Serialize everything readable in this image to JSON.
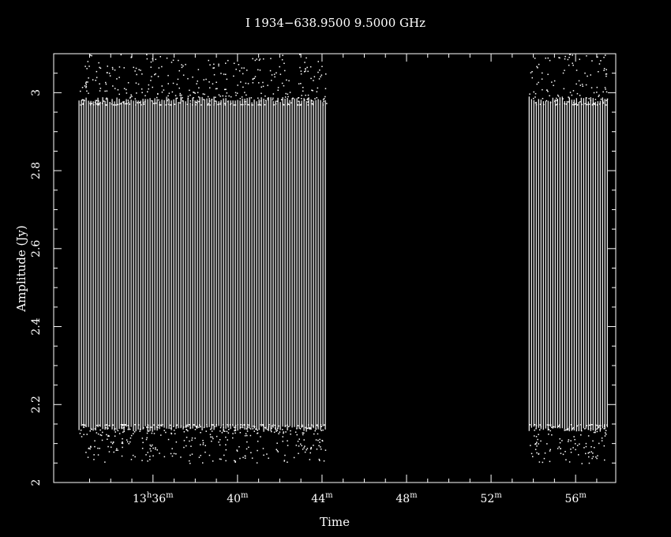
{
  "chart_data": {
    "type": "scatter",
    "title": "I 1934−638.9500  9.5000  GHz",
    "xlabel": "Time",
    "ylabel": "Amplitude (Jy)",
    "x_unit": "minutes after 13h00m",
    "xlim": [
      31.3,
      57.9
    ],
    "ylim": [
      2.0,
      3.1
    ],
    "x_ticks": [
      {
        "value": 36,
        "label_main": "13",
        "label_sup1": "h",
        "label_mid": "36",
        "label_sup2": "m"
      },
      {
        "value": 40,
        "label_main": "",
        "label_sup1": "",
        "label_mid": "40",
        "label_sup2": "m"
      },
      {
        "value": 44,
        "label_main": "",
        "label_sup1": "",
        "label_mid": "44",
        "label_sup2": "m"
      },
      {
        "value": 48,
        "label_main": "",
        "label_sup1": "",
        "label_mid": "48",
        "label_sup2": "m"
      },
      {
        "value": 52,
        "label_main": "",
        "label_sup1": "",
        "label_mid": "52",
        "label_sup2": "m"
      },
      {
        "value": 56,
        "label_main": "",
        "label_sup1": "",
        "label_mid": "56",
        "label_sup2": "m"
      }
    ],
    "y_ticks": [
      {
        "value": 2.0,
        "label": "2"
      },
      {
        "value": 2.2,
        "label": "2.2"
      },
      {
        "value": 2.4,
        "label": "2.4"
      },
      {
        "value": 2.6,
        "label": "2.6"
      },
      {
        "value": 2.8,
        "label": "2.8"
      },
      {
        "value": 3.0,
        "label": "3"
      }
    ],
    "scans": [
      {
        "x_start": 32.5,
        "x_end": 44.2,
        "y_low": 2.13,
        "y_high": 2.99
      },
      {
        "x_start": 53.8,
        "x_end": 57.5,
        "y_low": 2.13,
        "y_high": 2.99
      }
    ],
    "scatter_band_low": [
      2.05,
      2.15
    ],
    "scatter_band_high": [
      2.97,
      3.1
    ],
    "grid": false,
    "legend": "none"
  }
}
